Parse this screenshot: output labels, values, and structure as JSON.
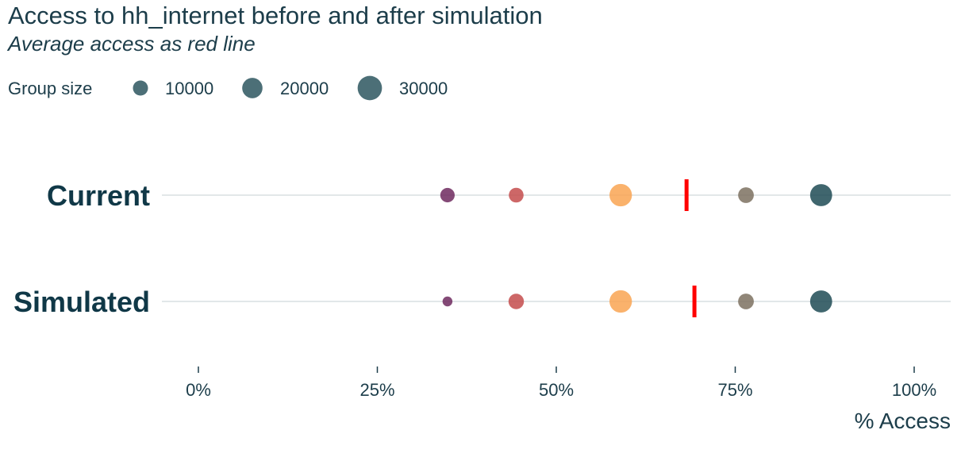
{
  "chart_data": {
    "type": "dot",
    "title": "Access to hh_internet before and after simulation",
    "subtitle": "Average access as red line",
    "xlabel": "% Access",
    "xlim": [
      0,
      100
    ],
    "x_ticks": [
      0,
      25,
      50,
      75,
      100
    ],
    "x_tick_labels": [
      "0%",
      "25%",
      "50%",
      "75%",
      "100%"
    ],
    "categories": [
      "Current",
      "Simulated"
    ],
    "legend": {
      "title": "Group size",
      "placement": "top-left",
      "entries": [
        {
          "label": "10000",
          "size": 10000
        },
        {
          "label": "20000",
          "size": 20000
        },
        {
          "label": "30000",
          "size": 30000
        }
      ]
    },
    "groups": [
      {
        "color": "#6e2a5f",
        "points": [
          {
            "category": "Current",
            "x": 34.8,
            "size": 9000
          },
          {
            "category": "Simulated",
            "x": 34.8,
            "size": 3500
          }
        ]
      },
      {
        "color": "#c44c4c",
        "points": [
          {
            "category": "Current",
            "x": 44.4,
            "size": 9500
          },
          {
            "category": "Simulated",
            "x": 44.4,
            "size": 10500
          }
        ]
      },
      {
        "color": "#f9a552",
        "points": [
          {
            "category": "Current",
            "x": 59.0,
            "size": 25000
          },
          {
            "category": "Simulated",
            "x": 59.0,
            "size": 25000
          }
        ]
      },
      {
        "color": "#7d7160",
        "points": [
          {
            "category": "Current",
            "x": 76.5,
            "size": 11000
          },
          {
            "category": "Simulated",
            "x": 76.5,
            "size": 11000
          }
        ]
      },
      {
        "color": "#1f4b55",
        "points": [
          {
            "category": "Current",
            "x": 87.0,
            "size": 24000
          },
          {
            "category": "Simulated",
            "x": 87.0,
            "size": 24000
          }
        ]
      }
    ],
    "averages": [
      {
        "category": "Current",
        "x": 68.2,
        "color": "#ff0000"
      },
      {
        "category": "Simulated",
        "x": 69.3,
        "color": "#ff0000"
      }
    ],
    "grid": "horizontal"
  }
}
